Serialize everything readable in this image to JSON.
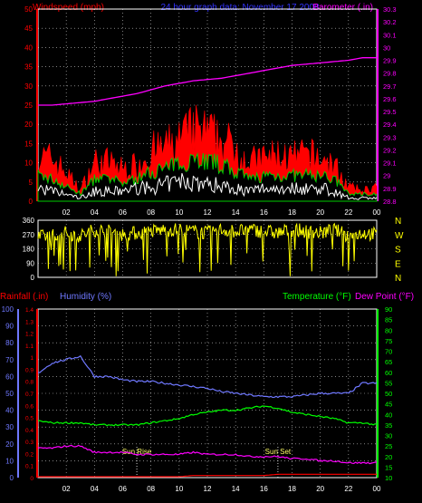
{
  "header": {
    "left": "Windspeed (mph)",
    "center": "24 hour graph data: November 17 2008",
    "right": "Barometer (.in)"
  },
  "colors": {
    "gust": "#ff0000",
    "avg": "#00cc00",
    "low": "#ffffff",
    "barometer": "#ff00ff",
    "wind_dir": "#ffff00",
    "rainfall": "#ff0000",
    "humidity": "#6f78ff",
    "temperature": "#00ff00",
    "dewpoint": "#ff00ff",
    "grid": "#ffffff"
  },
  "chart_data": [
    {
      "type": "line",
      "title": "Windspeed (mph) / Barometer (.in)",
      "x_ticks": [
        "02",
        "04",
        "06",
        "08",
        "10",
        "12",
        "14",
        "16",
        "18",
        "20",
        "22",
        "00"
      ],
      "y_left_ticks": [
        0,
        5,
        10,
        15,
        20,
        25,
        30,
        35,
        40,
        45,
        50
      ],
      "y_left_range": [
        0,
        50
      ],
      "y_right_ticks": [
        "28.8",
        "28.9",
        "29",
        "29.1",
        "29.2",
        "29.3",
        "29.4",
        "29.5",
        "29.6",
        "29.7",
        "29.8",
        "29.9",
        "30",
        "30.1",
        "30.2",
        "30.3"
      ],
      "y_right_range": [
        28.8,
        30.3
      ],
      "x_hours": [
        0,
        1,
        2,
        3,
        4,
        5,
        6,
        7,
        8,
        9,
        10,
        11,
        12,
        13,
        14,
        15,
        16,
        17,
        18,
        19,
        20,
        21,
        22,
        23,
        24
      ],
      "series": [
        {
          "name": "Windspeed (mph)",
          "key": "gust",
          "values": [
            12,
            12,
            8,
            3,
            11,
            11,
            9,
            10,
            14,
            15,
            17,
            20,
            19,
            17,
            15,
            11,
            12,
            13,
            12,
            13,
            12,
            10,
            4,
            3,
            4
          ]
        },
        {
          "name": "",
          "key": "avg",
          "values": [
            7,
            6,
            4,
            2,
            6,
            6,
            5,
            6,
            8,
            9,
            10,
            12,
            11,
            10,
            8,
            6,
            7,
            7,
            7,
            7,
            7,
            6,
            2,
            2,
            2
          ]
        },
        {
          "name": "",
          "key": "low",
          "values": [
            4,
            3,
            2,
            1,
            3,
            3,
            3,
            4,
            4,
            5,
            6,
            6,
            5,
            5,
            4,
            3,
            4,
            4,
            4,
            4,
            4,
            3,
            1,
            1,
            1
          ]
        },
        {
          "name": "Barometer (.in)",
          "key": "barometer",
          "axis": "right",
          "values": [
            29.55,
            29.55,
            29.56,
            29.57,
            29.58,
            29.6,
            29.62,
            29.64,
            29.67,
            29.7,
            29.72,
            29.74,
            29.75,
            29.76,
            29.78,
            29.8,
            29.82,
            29.84,
            29.86,
            29.87,
            29.88,
            29.89,
            29.9,
            29.92,
            29.92
          ]
        }
      ]
    },
    {
      "type": "line",
      "title": "Wind direction",
      "x_ticks": [
        "02",
        "04",
        "06",
        "08",
        "10",
        "12",
        "14",
        "16",
        "18",
        "20",
        "22",
        "00"
      ],
      "y_left_ticks": [
        0,
        90,
        180,
        270,
        360
      ],
      "y_left_range": [
        0,
        360
      ],
      "y_right_ticks": [
        "N",
        "W",
        "S",
        "E",
        "N"
      ],
      "series": [
        {
          "name": "",
          "key": "wind_dir",
          "values": [
            250,
            270,
            280,
            260,
            300,
            290,
            270,
            280,
            290,
            300,
            300,
            290,
            280,
            300,
            290,
            300,
            290,
            280,
            300,
            290,
            280,
            300,
            260,
            280,
            270
          ]
        }
      ]
    },
    {
      "type": "line",
      "title": "Rainfall / Humidity / Temperature / Dew Point",
      "labels": {
        "rainfall": "Rainfall (.in)",
        "humidity": "Humidity (%)",
        "temperature": "Temperature (°F)",
        "dewpoint": "Dew Point (°F)"
      },
      "x_ticks": [
        "02",
        "04",
        "06",
        "08",
        "10",
        "12",
        "14",
        "16",
        "18",
        "20",
        "22",
        "00"
      ],
      "y_humidity_ticks": [
        0,
        10,
        20,
        30,
        40,
        50,
        60,
        70,
        80,
        90,
        100
      ],
      "y_rain_ticks": [
        "0",
        "0.1",
        "0.2",
        "0.3",
        "0.4",
        "0.5",
        "0.6",
        "0.7",
        "0.8",
        "0.9",
        "1",
        "1.1",
        "1.2",
        "1.3",
        "1.4"
      ],
      "y_rain_range": [
        0,
        1.4
      ],
      "y_temp_ticks": [
        10,
        15,
        20,
        25,
        30,
        35,
        40,
        45,
        50,
        55,
        60,
        65,
        70,
        75,
        80,
        85,
        90
      ],
      "y_temp_range": [
        10,
        90
      ],
      "annotations": [
        "Sun Rise",
        "Sun Set"
      ],
      "annotation_hours": [
        7,
        17
      ],
      "x_hours": [
        0,
        1,
        2,
        3,
        4,
        5,
        6,
        7,
        8,
        9,
        10,
        11,
        12,
        13,
        14,
        15,
        16,
        17,
        18,
        19,
        20,
        21,
        22,
        23,
        24
      ],
      "series": [
        {
          "name": "Humidity (%)",
          "key": "humidity",
          "axis": "humidity",
          "values": [
            62,
            68,
            70,
            72,
            60,
            60,
            58,
            57,
            57,
            56,
            55,
            54,
            53,
            51,
            50,
            49,
            48,
            48,
            48,
            49,
            50,
            50,
            50,
            56,
            56
          ]
        },
        {
          "name": "Temperature (°F)",
          "key": "temperature",
          "axis": "temp",
          "values": [
            37,
            36,
            36,
            36,
            35,
            35,
            35,
            35,
            36,
            37,
            38,
            40,
            41,
            42,
            42,
            43,
            44,
            43,
            41,
            40,
            39,
            38,
            36,
            36,
            35
          ]
        },
        {
          "name": "Dew Point (°F)",
          "key": "dewpoint",
          "axis": "temp",
          "values": [
            24,
            24,
            25,
            25,
            22,
            22,
            22,
            21,
            21,
            21,
            21,
            22,
            21,
            21,
            21,
            20,
            20,
            20,
            19,
            19,
            18,
            18,
            17,
            17,
            17
          ]
        },
        {
          "name": "Rainfall (.in)",
          "key": "rainfall",
          "axis": "rain",
          "values": [
            0,
            0,
            0,
            0,
            0,
            0,
            0,
            0,
            0,
            0,
            0,
            0.01,
            0.01,
            0.01,
            0.01,
            0.01,
            0.01,
            0.02,
            0.02,
            0.02,
            0.02,
            0.02,
            0.02,
            0.02,
            0.02
          ]
        }
      ]
    }
  ]
}
